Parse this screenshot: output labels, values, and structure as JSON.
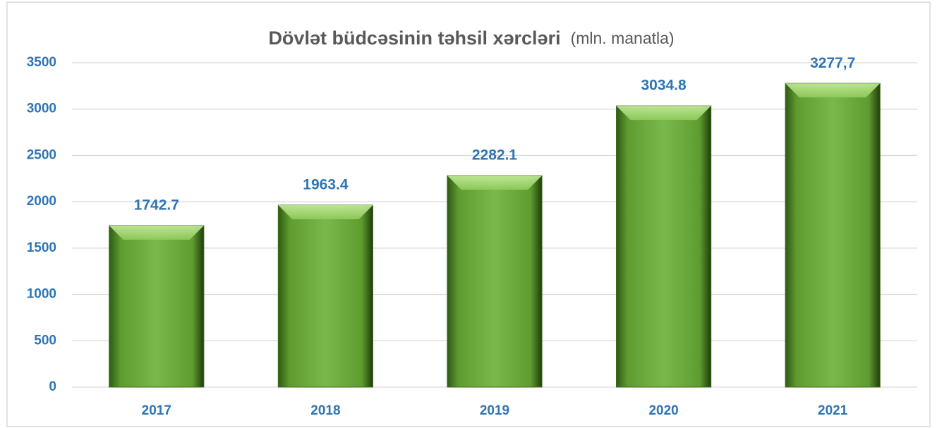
{
  "chart_data": {
    "type": "bar",
    "title": "Dövlət büdcəsinin təhsil xərcləri",
    "subtitle": "(mln. manatla)",
    "categories": [
      "2017",
      "2018",
      "2019",
      "2020",
      "2021"
    ],
    "values": [
      1742.7,
      1963.4,
      2282.1,
      3034.8,
      3277.7
    ],
    "value_labels": [
      "1742.7",
      "1963.4",
      "2282.1",
      "3034.8",
      "3277,7"
    ],
    "color": "#6fb143",
    "ylim": [
      0,
      3500
    ],
    "yticks": [
      0,
      500,
      1000,
      1500,
      2000,
      2500,
      3000,
      3500
    ],
    "grid": true
  }
}
